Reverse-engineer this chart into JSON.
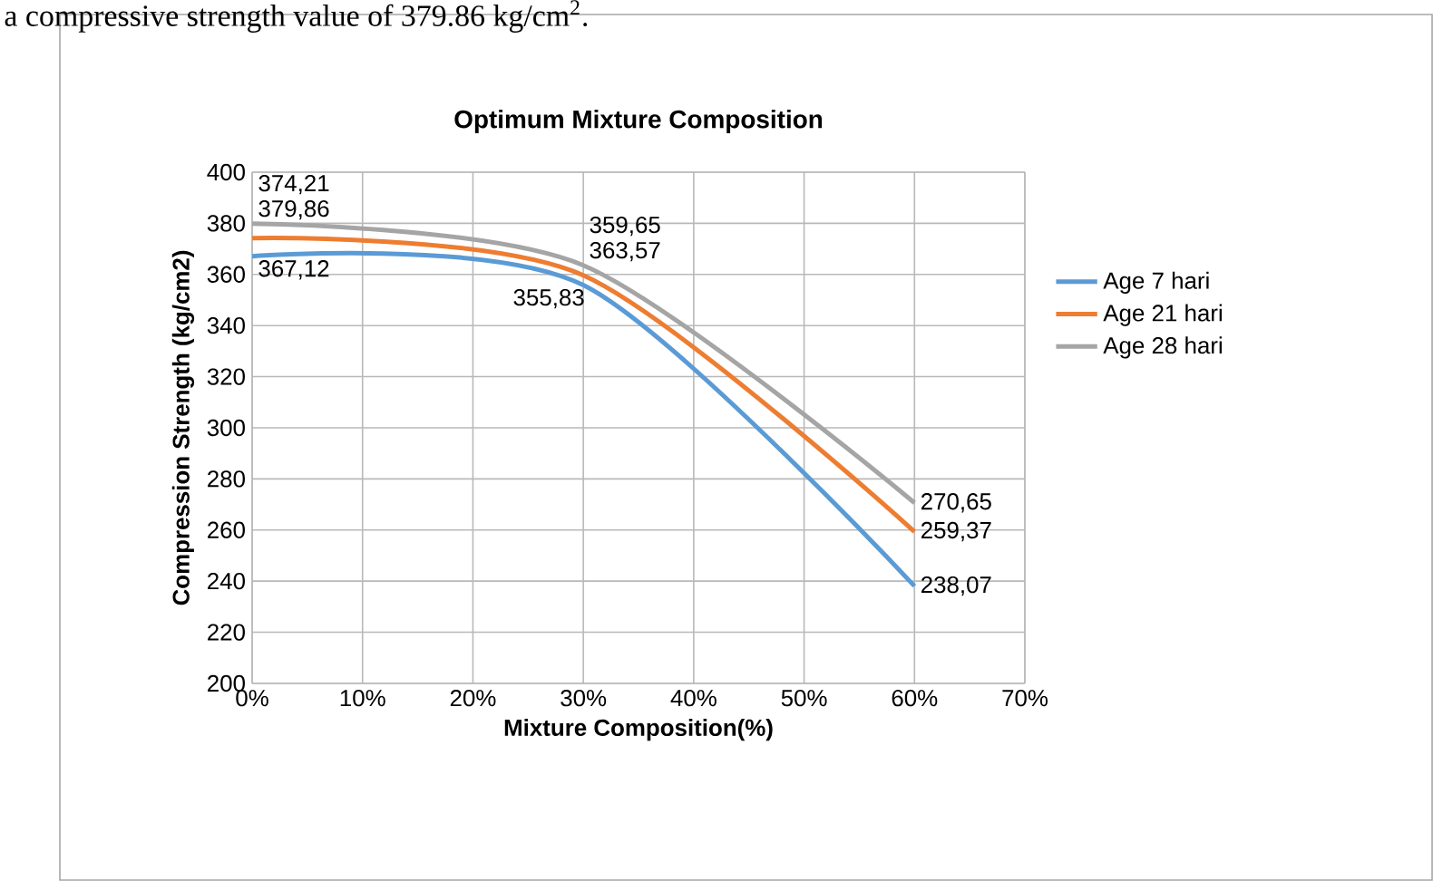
{
  "chart_data": {
    "type": "line",
    "title": "Optimum Mixture Composition",
    "xlabel": "Mixture Composition(%)",
    "ylabel": "Compression Strength (kg/cm2)",
    "annotations": [
      "a compressive strength value of 379.86 kg/cm$^{2}$."
    ],
    "x": [
      0,
      30,
      60
    ],
    "series": [
      {
        "name": "Age 7 hari",
        "color": "#5b9bd5",
        "values": [
          367.12,
          355.83,
          238.07
        ],
        "value_labels": [
          "367,12",
          "355,83",
          "238,07"
        ]
      },
      {
        "name": "Age 21 hari",
        "color": "#ed7d31",
        "values": [
          374.21,
          359.65,
          259.37
        ],
        "value_labels": [
          "374,21",
          "359,65",
          "259,37"
        ]
      },
      {
        "name": "Age 28 hari",
        "color": "#a5a5a5",
        "values": [
          379.86,
          363.57,
          270.65
        ],
        "value_labels": [
          "379,86",
          "363,57",
          "270,65"
        ]
      }
    ],
    "xlim": [
      0,
      70
    ],
    "ylim": [
      200,
      400
    ],
    "xticks": [
      {
        "value": 0,
        "label": "0%"
      },
      {
        "value": 10,
        "label": "10%"
      },
      {
        "value": 20,
        "label": "20%"
      },
      {
        "value": 30,
        "label": "30%"
      },
      {
        "value": 40,
        "label": "40%"
      },
      {
        "value": 50,
        "label": "50%"
      },
      {
        "value": 60,
        "label": "60%"
      },
      {
        "value": 70,
        "label": "70%"
      }
    ],
    "yticks": [
      200,
      220,
      240,
      260,
      280,
      300,
      320,
      340,
      360,
      380,
      400
    ],
    "grid": true,
    "legend": "right"
  }
}
